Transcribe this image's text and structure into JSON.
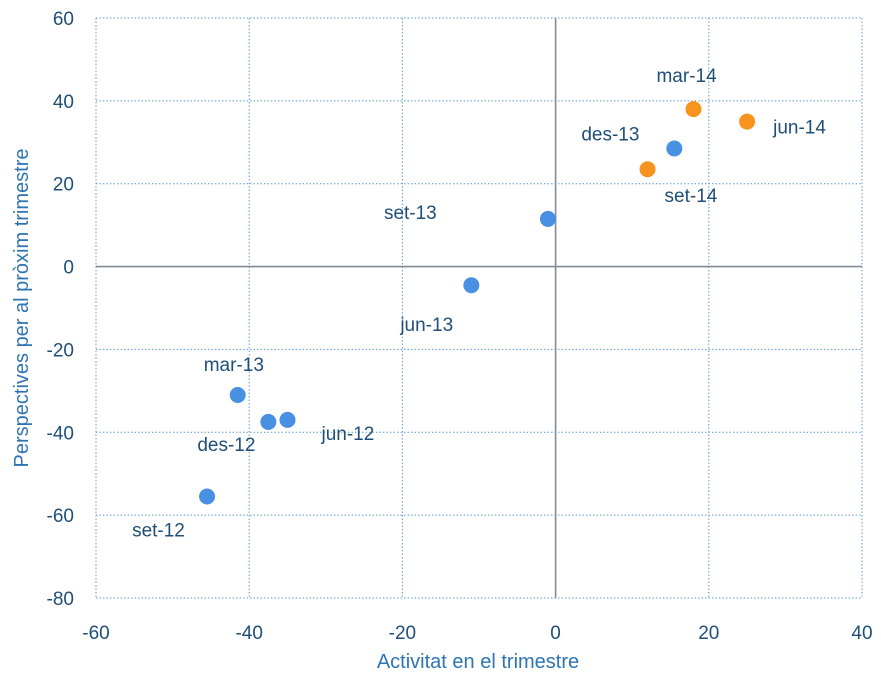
{
  "chart_data": {
    "type": "scatter",
    "title": "",
    "xlabel": "Activitat en el trimestre",
    "ylabel": "Perspectives per al pròxim trimestre",
    "xlim": [
      -60,
      40
    ],
    "ylim": [
      -80,
      60
    ],
    "x_ticks": [
      "-60",
      "-40",
      "-20",
      "0",
      "20",
      "40"
    ],
    "y_ticks": [
      "60",
      "40",
      "20",
      "0",
      "-20",
      "-40",
      "-60",
      "-80"
    ],
    "x_tick_values": [
      -60,
      -40,
      -20,
      0,
      20,
      40
    ],
    "y_tick_values": [
      60,
      40,
      20,
      0,
      -20,
      -40,
      -60,
      -80
    ],
    "grid": true,
    "grid_style": "dotted",
    "colors": {
      "blue": "#4A90E2",
      "orange": "#F7931E",
      "text": "#1F4E79",
      "grid": "#5B9BD5",
      "axis": "#808B96"
    },
    "series": [
      {
        "color": "#4A90E2",
        "points": [
          {
            "label": "jun-12",
            "x": -35,
            "y": -37
          },
          {
            "label": "set-12",
            "x": -45.5,
            "y": -55.5
          },
          {
            "label": "des-12",
            "x": -37.5,
            "y": -37.5
          },
          {
            "label": "mar-13",
            "x": -41.5,
            "y": -31
          },
          {
            "label": "jun-13",
            "x": -11,
            "y": -4.5
          },
          {
            "label": "set-13",
            "x": -1,
            "y": 11.5
          },
          {
            "label": "des-13",
            "x": 15.5,
            "y": 28.5
          }
        ]
      },
      {
        "color": "#F7931E",
        "points": [
          {
            "label": "mar-14",
            "x": 18,
            "y": 38
          },
          {
            "label": "jun-14",
            "x": 25,
            "y": 35
          },
          {
            "label": "set-14",
            "x": 12,
            "y": 23.5
          }
        ]
      }
    ]
  }
}
